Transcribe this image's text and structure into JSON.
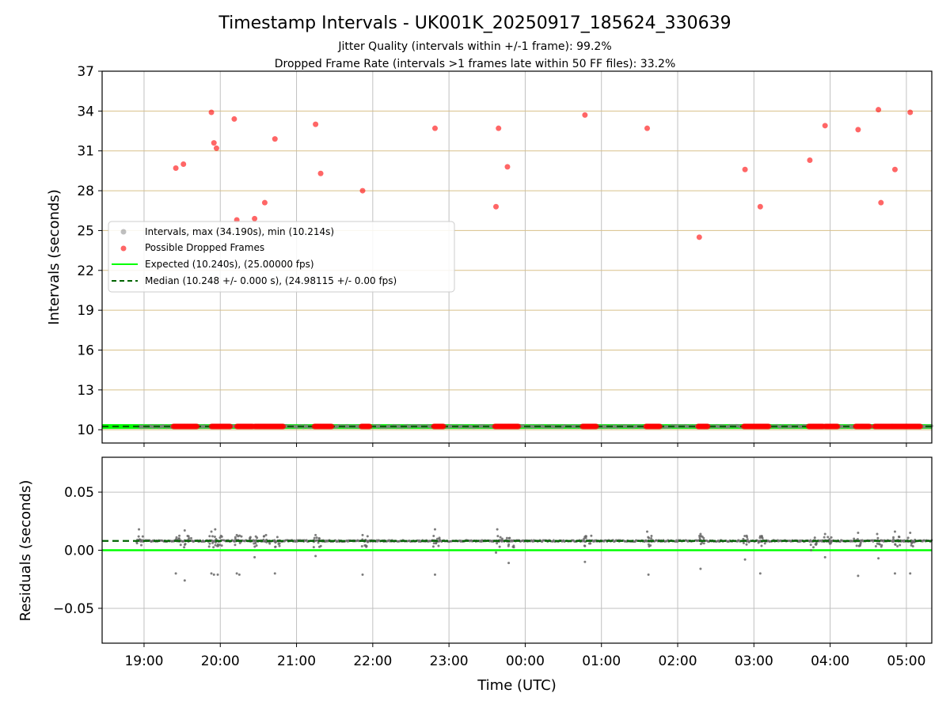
{
  "chart_data": [
    {
      "type": "scatter",
      "title": "Timestamp Intervals - UK001K_20250917_185624_330639",
      "subtitle_1": "Jitter Quality (intervals within +/-1 frame): 99.2%",
      "subtitle_2": "Dropped Frame Rate (intervals >1 frames late within 50 FF files): 33.2%",
      "xlabel": "",
      "ylabel": "Intervals (seconds)",
      "xlim": [
        "18:27",
        "05:20"
      ],
      "ylim": [
        9,
        37
      ],
      "y_ticks": [
        10,
        13,
        16,
        19,
        22,
        25,
        28,
        31,
        34,
        37
      ],
      "y_tick_labels": [
        "10",
        "13",
        "16",
        "19",
        "22",
        "25",
        "28",
        "31",
        "34",
        "37"
      ],
      "grid": "both",
      "legend_placement": "center-left",
      "legend": [
        {
          "label": "Intervals, max (34.190s), min (10.214s)",
          "color": "#808080"
        },
        {
          "label": "Possible Dropped Frames",
          "color": "#ff0000"
        },
        {
          "label": "Expected (10.240s), (25.00000 fps)",
          "color": "#00ff00"
        },
        {
          "label": "Median (10.248 +/- 0.000 s), (24.98115 +/- 0.00 fps)",
          "color": "#006400"
        }
      ],
      "expected_interval": 10.24,
      "median_interval": 10.248,
      "dropped_frames": [
        {
          "x": "19:25",
          "y": 29.7
        },
        {
          "x": "19:31",
          "y": 30.0
        },
        {
          "x": "19:53",
          "y": 33.9
        },
        {
          "x": "19:55",
          "y": 31.6
        },
        {
          "x": "19:57",
          "y": 31.2
        },
        {
          "x": "20:11",
          "y": 33.4
        },
        {
          "x": "20:13",
          "y": 25.8
        },
        {
          "x": "20:27",
          "y": 25.9
        },
        {
          "x": "20:35",
          "y": 27.1
        },
        {
          "x": "20:43",
          "y": 31.9
        },
        {
          "x": "21:15",
          "y": 33.0
        },
        {
          "x": "21:19",
          "y": 29.3
        },
        {
          "x": "21:52",
          "y": 28.0
        },
        {
          "x": "22:49",
          "y": 32.7
        },
        {
          "x": "23:37",
          "y": 26.8
        },
        {
          "x": "23:39",
          "y": 32.7
        },
        {
          "x": "23:46",
          "y": 29.8
        },
        {
          "x": "00:47",
          "y": 33.7
        },
        {
          "x": "01:36",
          "y": 32.7
        },
        {
          "x": "02:17",
          "y": 24.5
        },
        {
          "x": "02:53",
          "y": 29.6
        },
        {
          "x": "03:05",
          "y": 26.8
        },
        {
          "x": "03:44",
          "y": 30.3
        },
        {
          "x": "03:56",
          "y": 32.9
        },
        {
          "x": "04:22",
          "y": 32.6
        },
        {
          "x": "04:38",
          "y": 34.1
        },
        {
          "x": "04:40",
          "y": 27.1
        },
        {
          "x": "04:51",
          "y": 29.6
        },
        {
          "x": "05:03",
          "y": 33.9
        }
      ],
      "dropped_baseline_ranges": [
        [
          "19:23",
          "19:42"
        ],
        [
          "19:53",
          "20:08"
        ],
        [
          "20:13",
          "20:26"
        ],
        [
          "20:27",
          "20:50"
        ],
        [
          "21:14",
          "21:28"
        ],
        [
          "21:51",
          "21:58"
        ],
        [
          "22:48",
          "22:56"
        ],
        [
          "23:36",
          "23:55"
        ],
        [
          "00:45",
          "00:56"
        ],
        [
          "01:35",
          "01:46"
        ],
        [
          "02:16",
          "02:24"
        ],
        [
          "02:52",
          "03:04"
        ],
        [
          "03:04",
          "03:12"
        ],
        [
          "03:43",
          "03:55"
        ],
        [
          "03:56",
          "04:06"
        ],
        [
          "04:20",
          "04:31"
        ],
        [
          "04:35",
          "04:49"
        ],
        [
          "04:49",
          "05:00"
        ],
        [
          "05:00",
          "05:11"
        ]
      ],
      "interval_range": [
        "18:56",
        "05:20"
      ]
    },
    {
      "type": "scatter",
      "xlabel": "Time (UTC)",
      "ylabel": "Residuals (seconds)",
      "xlim": [
        "18:27",
        "05:20"
      ],
      "ylim": [
        -0.08,
        0.08
      ],
      "y_ticks": [
        -0.05,
        0.0,
        0.05
      ],
      "y_tick_labels": [
        "−0.05",
        "0.00",
        "0.05"
      ],
      "x_ticks": [
        "19:00",
        "20:00",
        "21:00",
        "22:00",
        "23:00",
        "00:00",
        "01:00",
        "02:00",
        "03:00",
        "04:00",
        "05:00"
      ],
      "grid": "both",
      "expected_residual": 0.0,
      "median_residual": 0.008,
      "residual_clusters": [
        "18:56",
        "19:25",
        "19:33",
        "19:53",
        "19:58",
        "20:13",
        "20:25",
        "20:35",
        "20:43",
        "21:15",
        "21:52",
        "22:49",
        "23:38",
        "23:47",
        "00:48",
        "01:36",
        "02:18",
        "02:53",
        "03:05",
        "03:45",
        "03:57",
        "04:20",
        "04:37",
        "04:51",
        "05:03"
      ],
      "residual_outliers": [
        {
          "x": "19:25",
          "y": -0.02
        },
        {
          "x": "19:32",
          "y": -0.026
        },
        {
          "x": "19:53",
          "y": -0.02
        },
        {
          "x": "19:55",
          "y": -0.021
        },
        {
          "x": "19:58",
          "y": -0.021
        },
        {
          "x": "20:13",
          "y": -0.02
        },
        {
          "x": "20:15",
          "y": -0.021
        },
        {
          "x": "20:27",
          "y": -0.006
        },
        {
          "x": "20:43",
          "y": -0.02
        },
        {
          "x": "21:15",
          "y": -0.005
        },
        {
          "x": "21:52",
          "y": -0.021
        },
        {
          "x": "22:49",
          "y": -0.021
        },
        {
          "x": "23:37",
          "y": -0.002
        },
        {
          "x": "23:47",
          "y": -0.011
        },
        {
          "x": "00:47",
          "y": -0.01
        },
        {
          "x": "01:37",
          "y": -0.021
        },
        {
          "x": "02:18",
          "y": -0.016
        },
        {
          "x": "02:53",
          "y": -0.008
        },
        {
          "x": "03:05",
          "y": -0.02
        },
        {
          "x": "03:45",
          "y": 0.0
        },
        {
          "x": "03:56",
          "y": -0.006
        },
        {
          "x": "04:22",
          "y": -0.022
        },
        {
          "x": "04:38",
          "y": -0.007
        },
        {
          "x": "04:51",
          "y": -0.02
        },
        {
          "x": "05:03",
          "y": -0.02
        }
      ],
      "residual_highs": [
        {
          "x": "18:56",
          "y": 0.018
        },
        {
          "x": "19:32",
          "y": 0.017
        },
        {
          "x": "19:53",
          "y": 0.016
        },
        {
          "x": "19:56",
          "y": 0.018
        },
        {
          "x": "20:13",
          "y": 0.013
        },
        {
          "x": "20:36",
          "y": 0.013
        },
        {
          "x": "21:15",
          "y": 0.013
        },
        {
          "x": "21:52",
          "y": 0.013
        },
        {
          "x": "22:49",
          "y": 0.018
        },
        {
          "x": "23:38",
          "y": 0.018
        },
        {
          "x": "00:48",
          "y": 0.012
        },
        {
          "x": "01:36",
          "y": 0.016
        },
        {
          "x": "02:18",
          "y": 0.014
        },
        {
          "x": "03:05",
          "y": 0.012
        },
        {
          "x": "03:56",
          "y": 0.014
        },
        {
          "x": "04:22",
          "y": 0.015
        },
        {
          "x": "04:37",
          "y": 0.014
        },
        {
          "x": "04:51",
          "y": 0.016
        },
        {
          "x": "05:03",
          "y": 0.015
        }
      ]
    }
  ]
}
